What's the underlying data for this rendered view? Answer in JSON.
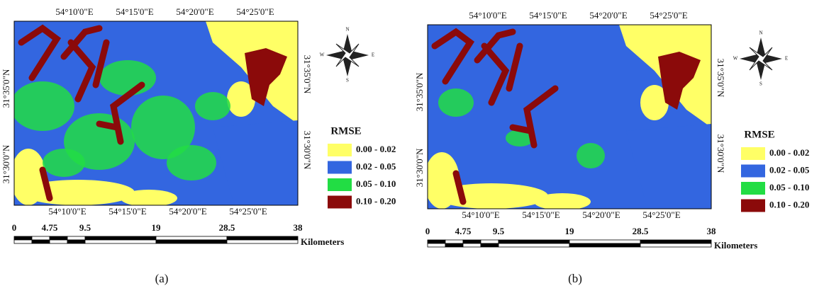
{
  "panels": [
    {
      "caption": "(a)",
      "top_labels": [
        "54°10'0\"E",
        "54°15'0\"E",
        "54°20'0\"E",
        "54°25'0\"E"
      ],
      "bottom_labels": [
        "54°10'0\"E",
        "54°15'0\"E",
        "54°20'0\"E",
        "54°25'0\"E"
      ],
      "left_labels": [
        "31°35'0\"N",
        "31°30'0\"N"
      ],
      "right_labels": [
        "31°35'0\"N",
        "31°30'0\"N"
      ],
      "compass": {
        "n": "N",
        "e": "E",
        "s": "S",
        "w": "W"
      },
      "legend": {
        "title": "RMSE",
        "items": [
          {
            "label": "0.00 - 0.02",
            "color": "#ffff66"
          },
          {
            "label": "0.02 - 0.05",
            "color": "#3366e0"
          },
          {
            "label": "0.05 - 0.10",
            "color": "#22dd44"
          },
          {
            "label": "0.10 - 0.20",
            "color": "#8b0a0a"
          }
        ]
      },
      "scale": {
        "labels": [
          "0",
          "4.75",
          "9.5",
          "19",
          "28.5",
          "38"
        ],
        "unit": "Kilometers"
      }
    },
    {
      "caption": "(b)",
      "top_labels": [
        "54°10'0\"E",
        "54°15'0\"E",
        "54°20'0\"E",
        "54°25'0\"E"
      ],
      "bottom_labels": [
        "54°10'0\"E",
        "54°15'0\"E",
        "54°20'0\"E",
        "54°25'0\"E"
      ],
      "left_labels": [
        "31°35'0\"N",
        "31°30'0\"N"
      ],
      "right_labels": [
        "31°35'0\"N",
        "31°30'0\"N"
      ],
      "compass": {
        "n": "N",
        "e": "E",
        "s": "S",
        "w": "W"
      },
      "legend": {
        "title": "RMSE",
        "items": [
          {
            "label": "0.00 - 0.02",
            "color": "#ffff66"
          },
          {
            "label": "0.02 - 0.05",
            "color": "#3366e0"
          },
          {
            "label": "0.05 - 0.10",
            "color": "#22dd44"
          },
          {
            "label": "0.10 - 0.20",
            "color": "#8b0a0a"
          }
        ]
      },
      "scale": {
        "labels": [
          "0",
          "4.75",
          "9.5",
          "19",
          "28.5",
          "38"
        ],
        "unit": "Kilometers"
      }
    }
  ]
}
